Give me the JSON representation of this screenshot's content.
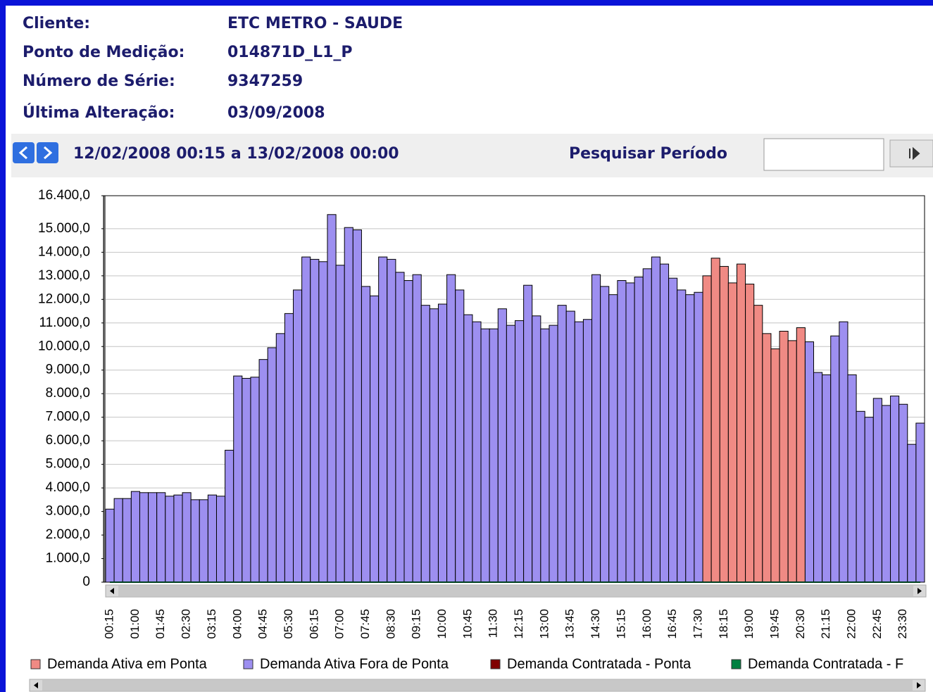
{
  "header": {
    "fields": [
      {
        "label": "Cliente:",
        "value": "ETC METRO - SAUDE"
      },
      {
        "label": "Ponto de Medição:",
        "value": "014871D_L1_P"
      },
      {
        "label": "Número de Série:",
        "value": "9347259"
      },
      {
        "label": "Última Alteração:",
        "value": "03/09/2008"
      }
    ]
  },
  "nav": {
    "range": "12/02/2008 00:15 a 13/02/2008 00:00",
    "search_label": "Pesquisar Período"
  },
  "chart_data": {
    "type": "bar",
    "categories": [
      "00:15",
      null,
      null,
      "01:00",
      null,
      null,
      "01:45",
      null,
      null,
      "02:30",
      null,
      null,
      "03:15",
      null,
      null,
      "04:00",
      null,
      null,
      "04:45",
      null,
      null,
      "05:30",
      null,
      null,
      "06:15",
      null,
      null,
      "07:00",
      null,
      null,
      "07:45",
      null,
      null,
      "08:30",
      null,
      null,
      "09:15",
      null,
      null,
      "10:00",
      null,
      null,
      "10:45",
      null,
      null,
      "11:30",
      null,
      null,
      "12:15",
      null,
      null,
      "13:00",
      null,
      null,
      "13:45",
      null,
      null,
      "14:30",
      null,
      null,
      "15:15",
      null,
      null,
      "16:00",
      null,
      null,
      "16:45",
      null,
      null,
      "17:30",
      null,
      null,
      "18:15",
      null,
      null,
      "19:00",
      null,
      null,
      "19:45",
      null,
      null,
      "20:30",
      null,
      null,
      "21:15",
      null,
      null,
      "22:00",
      null,
      null,
      "22:45",
      null,
      null,
      "23:30",
      null,
      null
    ],
    "series": [
      {
        "name": "Demanda Ativa em Ponta",
        "color": "#f08a84",
        "values": [
          null,
          null,
          null,
          null,
          null,
          null,
          null,
          null,
          null,
          null,
          null,
          null,
          null,
          null,
          null,
          null,
          null,
          null,
          null,
          null,
          null,
          null,
          null,
          null,
          null,
          null,
          null,
          null,
          null,
          null,
          null,
          null,
          null,
          null,
          null,
          null,
          null,
          null,
          null,
          null,
          null,
          null,
          null,
          null,
          null,
          null,
          null,
          null,
          null,
          null,
          null,
          null,
          null,
          null,
          null,
          null,
          null,
          null,
          null,
          null,
          null,
          null,
          null,
          null,
          null,
          null,
          null,
          null,
          null,
          null,
          13000,
          13750,
          13400,
          12700,
          13500,
          12650,
          11750,
          10550,
          9900,
          10650,
          10250,
          10800,
          null,
          null,
          null,
          null,
          null,
          null,
          null,
          null,
          null,
          null,
          null,
          null,
          null,
          null
        ]
      },
      {
        "name": "Demanda Ativa Fora de Ponta",
        "color": "#9d8ff0",
        "values": [
          3100,
          3550,
          3550,
          3850,
          3800,
          3800,
          3800,
          3650,
          3700,
          3800,
          3500,
          3500,
          3700,
          3650,
          5600,
          8750,
          8650,
          8700,
          9450,
          9950,
          10550,
          11400,
          12400,
          13800,
          13700,
          13600,
          15600,
          13450,
          15050,
          14950,
          12550,
          12150,
          13800,
          13700,
          13150,
          12800,
          13050,
          11750,
          11600,
          11800,
          13050,
          12400,
          11350,
          11050,
          10750,
          10750,
          11600,
          10900,
          11100,
          12600,
          11300,
          10750,
          10900,
          11750,
          11500,
          11050,
          11150,
          13050,
          12550,
          12200,
          12800,
          12700,
          12950,
          13300,
          13800,
          13500,
          12900,
          12400,
          12200,
          12300,
          null,
          null,
          null,
          null,
          null,
          null,
          null,
          null,
          null,
          null,
          null,
          null,
          10200,
          8900,
          8800,
          10450,
          11050,
          8800,
          7250,
          7000,
          7800,
          7500,
          7900,
          7550,
          5850,
          6750
        ]
      },
      {
        "name": "Demanda Contratada - Ponta",
        "color": "#800000",
        "type": "line",
        "values": [
          0,
          0,
          0,
          0,
          0,
          0,
          0,
          0,
          0,
          0,
          0,
          0,
          0,
          0,
          0,
          0,
          0,
          0,
          0,
          0,
          0,
          0,
          0,
          0,
          0,
          0,
          0,
          0,
          0,
          0,
          0,
          0,
          0,
          0,
          0,
          0,
          0,
          0,
          0,
          0,
          0,
          0,
          0,
          0,
          0,
          0,
          0,
          0,
          0,
          0,
          0,
          0,
          0,
          0,
          0,
          0,
          0,
          0,
          0,
          0,
          0,
          0,
          0,
          0,
          0,
          0,
          0,
          0,
          0,
          0,
          0,
          0,
          0,
          0,
          0,
          0,
          0,
          0,
          0,
          0,
          0,
          0,
          0,
          0,
          0,
          0,
          0,
          0,
          0,
          0,
          0,
          0,
          0,
          0,
          0,
          0
        ]
      },
      {
        "name": "Demanda Contratada - F",
        "color": "#008040",
        "type": "line",
        "values": [
          0,
          0,
          0,
          0,
          0,
          0,
          0,
          0,
          0,
          0,
          0,
          0,
          0,
          0,
          0,
          0,
          0,
          0,
          0,
          0,
          0,
          0,
          0,
          0,
          0,
          0,
          0,
          0,
          0,
          0,
          0,
          0,
          0,
          0,
          0,
          0,
          0,
          0,
          0,
          0,
          0,
          0,
          0,
          0,
          0,
          0,
          0,
          0,
          0,
          0,
          0,
          0,
          0,
          0,
          0,
          0,
          0,
          0,
          0,
          0,
          0,
          0,
          0,
          0,
          0,
          0,
          0,
          0,
          0,
          0,
          0,
          0,
          0,
          0,
          0,
          0,
          0,
          0,
          0,
          0,
          0,
          0,
          0,
          0,
          0,
          0,
          0,
          0,
          0,
          0,
          0,
          0,
          0,
          0,
          0,
          0
        ]
      }
    ],
    "ylim": [
      0,
      16400
    ],
    "yticks": [
      {
        "value": 0,
        "label": "0"
      },
      {
        "value": 1000,
        "label": "1.000,0"
      },
      {
        "value": 2000,
        "label": "2.000,0"
      },
      {
        "value": 3000,
        "label": "3.000,0"
      },
      {
        "value": 4000,
        "label": "4.000,0"
      },
      {
        "value": 5000,
        "label": "5.000,0"
      },
      {
        "value": 6000,
        "label": "6.000,0"
      },
      {
        "value": 7000,
        "label": "7.000,0"
      },
      {
        "value": 8000,
        "label": "8.000,0"
      },
      {
        "value": 9000,
        "label": "9.000,0"
      },
      {
        "value": 10000,
        "label": "10.000,0"
      },
      {
        "value": 11000,
        "label": "11.000,0"
      },
      {
        "value": 12000,
        "label": "12.000,0"
      },
      {
        "value": 13000,
        "label": "13.000,0"
      },
      {
        "value": 14000,
        "label": "14.000,0"
      },
      {
        "value": 15000,
        "label": "15.000,0"
      },
      {
        "value": 16400,
        "label": "16.400,0"
      }
    ],
    "grid": true,
    "stacked": false
  }
}
